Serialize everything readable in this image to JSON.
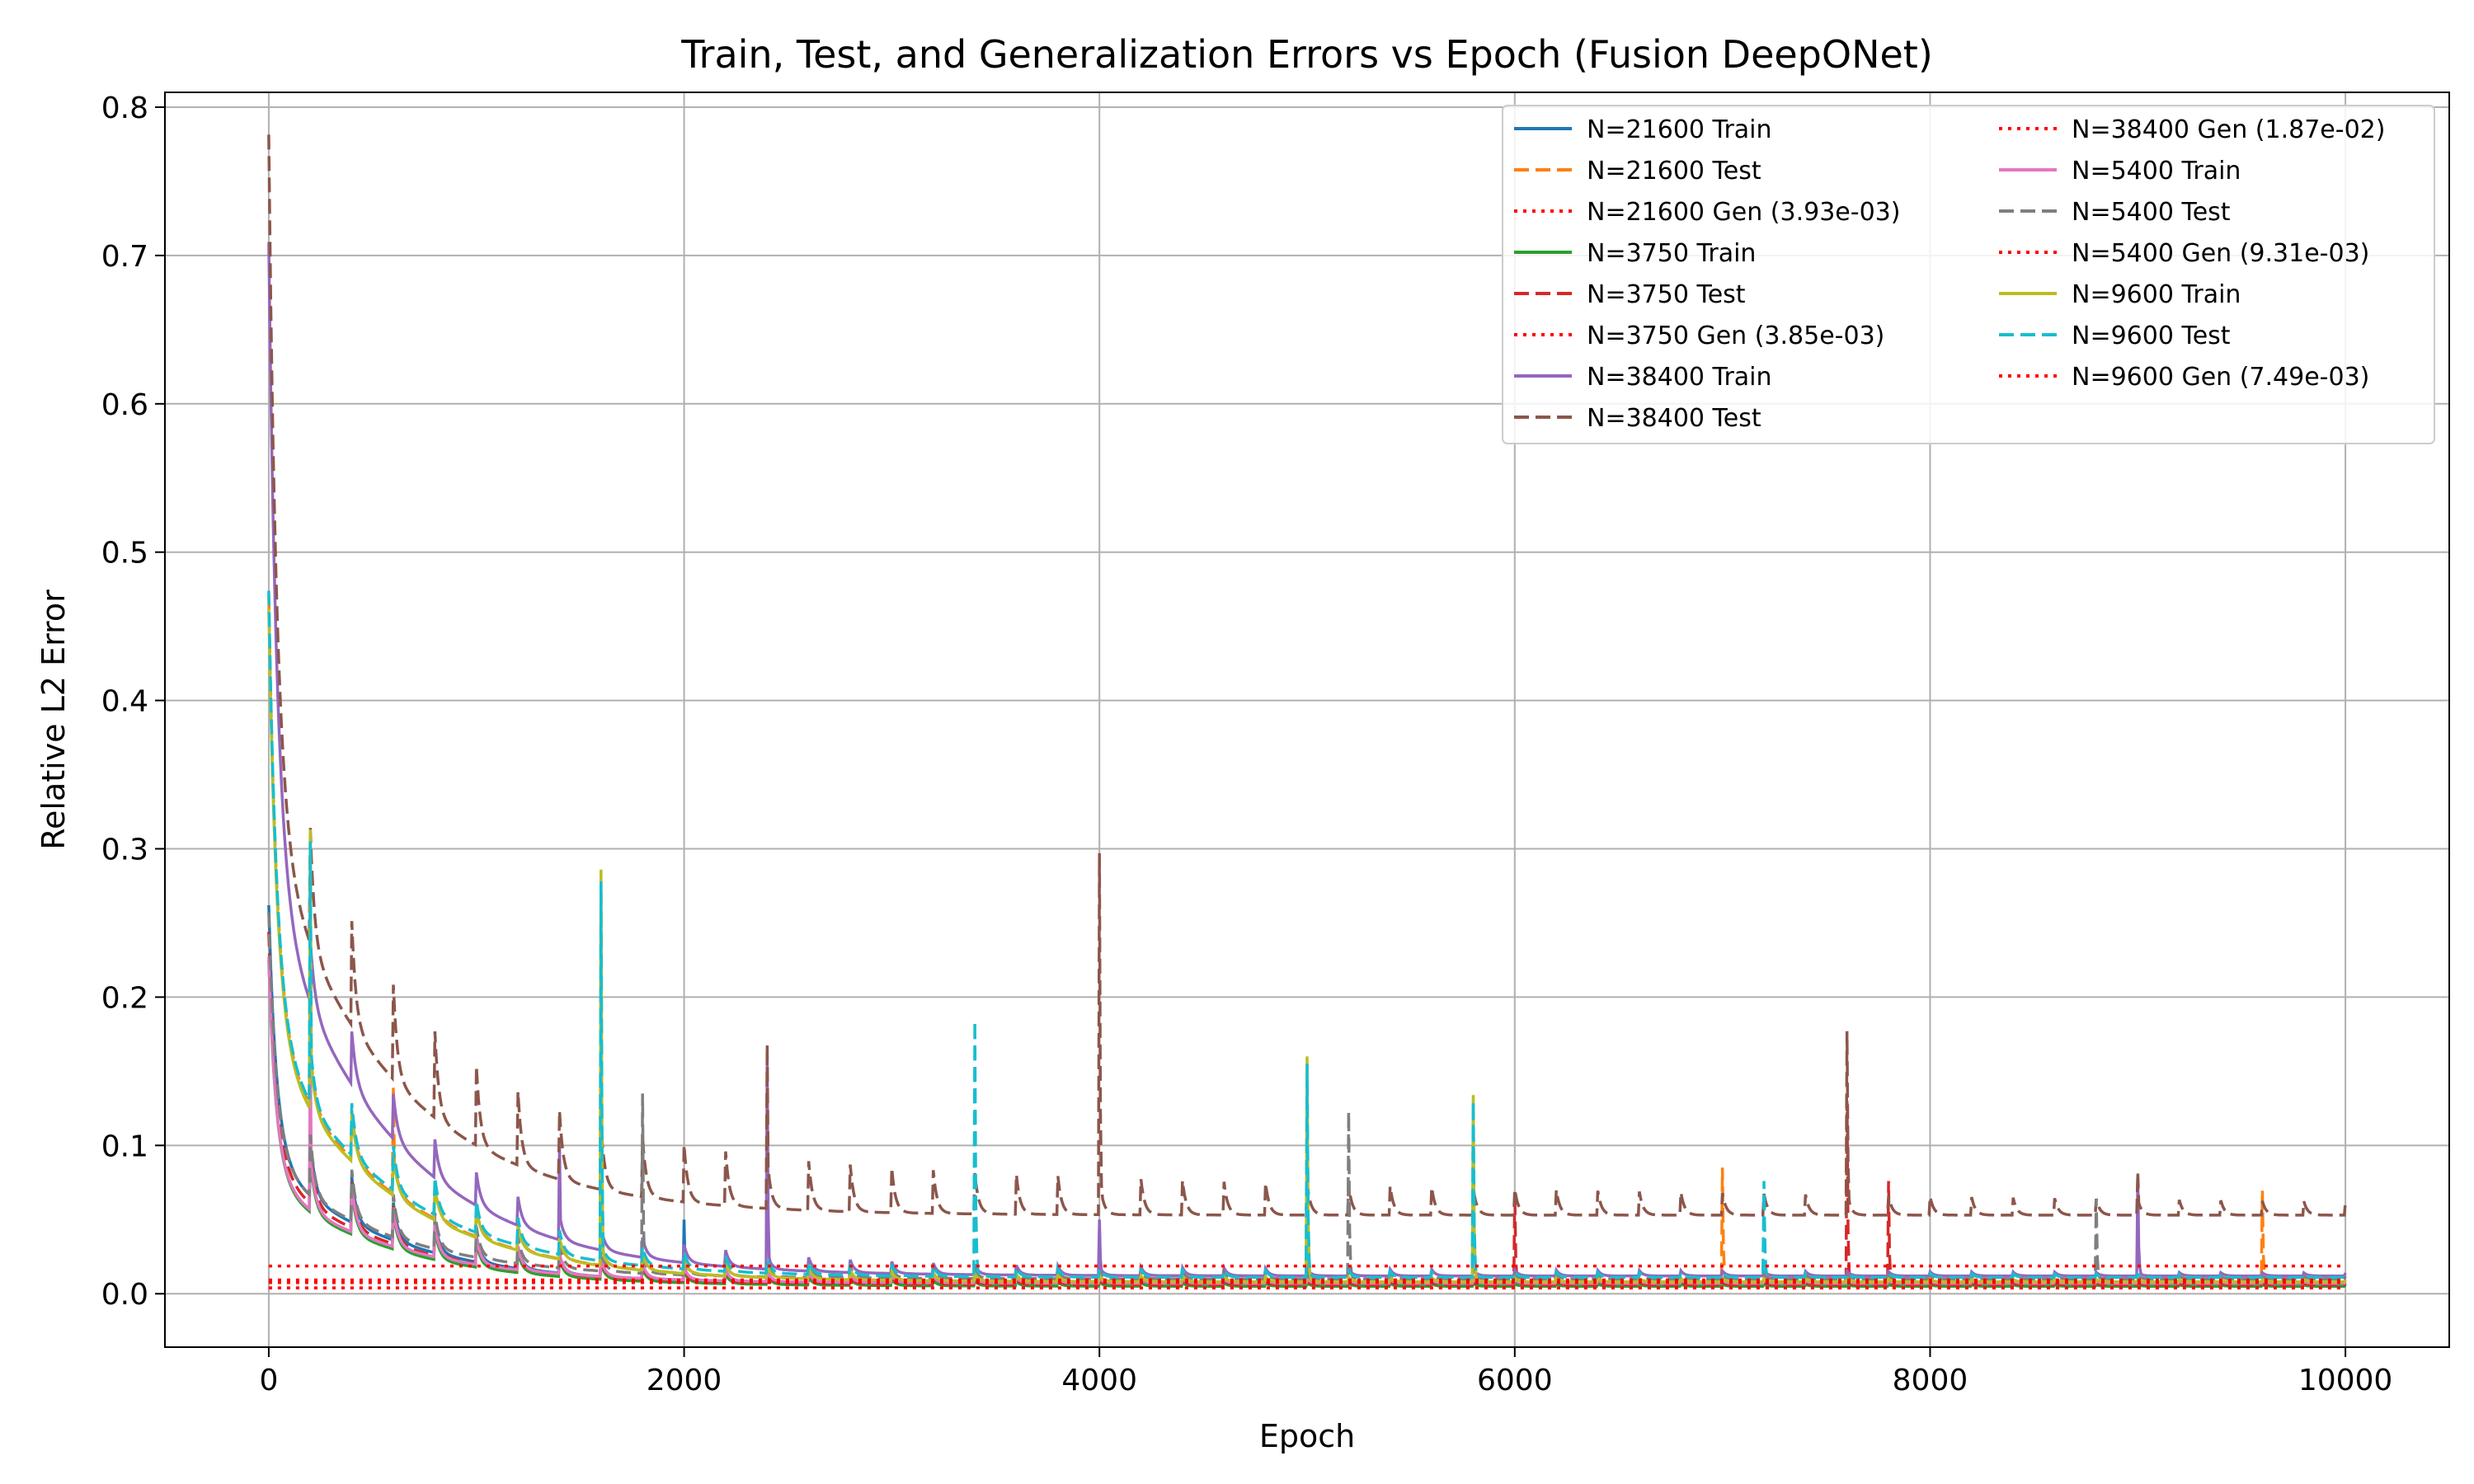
{
  "chart_data": {
    "type": "line",
    "title": "Train, Test, and Generalization Errors vs Epoch (Fusion DeepONet)",
    "xlabel": "Epoch",
    "ylabel": "Relative L2 Error",
    "xlim": [
      -500,
      10500
    ],
    "ylim": [
      -0.036,
      0.81
    ],
    "xticks": [
      0,
      2000,
      4000,
      6000,
      8000,
      10000
    ],
    "xtick_labels": [
      "0",
      "2000",
      "4000",
      "6000",
      "8000",
      "10000"
    ],
    "yticks": [
      0.0,
      0.1,
      0.2,
      0.3,
      0.4,
      0.5,
      0.6,
      0.7,
      0.8
    ],
    "ytick_labels": [
      "0.0",
      "0.1",
      "0.2",
      "0.3",
      "0.4",
      "0.5",
      "0.6",
      "0.7",
      "0.8"
    ],
    "grid": true,
    "legend_position": "top-right",
    "legend_columns": 2,
    "x_range": [
      0,
      10000
    ],
    "series": [
      {
        "name": "N=21600 Train",
        "style": "solid",
        "color": "#1f77b4",
        "start": 0.24,
        "plateau": 0.006,
        "spikes": [
          [
            2000,
            0.05
          ],
          [
            5000,
            0.03
          ]
        ]
      },
      {
        "name": "N=21600 Test",
        "style": "dashed",
        "color": "#ff7f0e",
        "start": 0.47,
        "plateau": 0.008,
        "spikes": [
          [
            200,
            0.31
          ],
          [
            600,
            0.14
          ],
          [
            1600,
            0.28
          ],
          [
            7000,
            0.085
          ],
          [
            9600,
            0.07
          ]
        ]
      },
      {
        "name": "N=21600 Gen (3.93e-03)",
        "style": "dotted",
        "color": "#ff0000",
        "value": 0.00393
      },
      {
        "name": "N=3750 Train",
        "style": "solid",
        "color": "#2ca02c",
        "start": 0.2,
        "plateau": 0.005,
        "spikes": [
          [
            600,
            0.06
          ]
        ]
      },
      {
        "name": "N=3750 Test",
        "style": "dashed",
        "color": "#d62728",
        "start": 0.22,
        "plateau": 0.006,
        "spikes": [
          [
            7600,
            0.13
          ],
          [
            7800,
            0.076
          ],
          [
            6000,
            0.068
          ]
        ]
      },
      {
        "name": "N=3750 Gen (3.85e-03)",
        "style": "dotted",
        "color": "#ff0000",
        "value": 0.00385
      },
      {
        "name": "N=38400 Train",
        "style": "solid",
        "color": "#9467bd",
        "start": 0.73,
        "plateau": 0.012,
        "spikes": [
          [
            1400,
            0.1
          ],
          [
            2400,
            0.16
          ],
          [
            4000,
            0.05
          ],
          [
            9000,
            0.08
          ]
        ]
      },
      {
        "name": "N=38400 Test",
        "style": "dashed",
        "color": "#8c564b",
        "start": 0.765,
        "plateau": 0.053,
        "spikes": [
          [
            2400,
            0.168
          ],
          [
            4000,
            0.297
          ],
          [
            7600,
            0.177
          ],
          [
            9000,
            0.082
          ]
        ]
      },
      {
        "name": "N=38400 Gen (1.87e-02)",
        "style": "dotted",
        "color": "#ff0000",
        "value": 0.0187
      },
      {
        "name": "N=5400 Train",
        "style": "solid",
        "color": "#e377c2",
        "start": 0.2,
        "plateau": 0.007,
        "spikes": [
          [
            200,
            0.17
          ]
        ]
      },
      {
        "name": "N=5400 Test",
        "style": "dashed",
        "color": "#7f7f7f",
        "start": 0.23,
        "plateau": 0.01,
        "spikes": [
          [
            1800,
            0.135
          ],
          [
            5200,
            0.123
          ],
          [
            8800,
            0.064
          ]
        ]
      },
      {
        "name": "N=5400 Gen (9.31e-03)",
        "style": "dotted",
        "color": "#ff0000",
        "value": 0.00931
      },
      {
        "name": "N=9600 Train",
        "style": "solid",
        "color": "#bcbd22",
        "start": 0.46,
        "plateau": 0.008,
        "spikes": [
          [
            200,
            0.313
          ],
          [
            1600,
            0.286
          ],
          [
            5000,
            0.16
          ],
          [
            5800,
            0.134
          ]
        ]
      },
      {
        "name": "N=9600 Test",
        "style": "dashed",
        "color": "#17becf",
        "start": 0.47,
        "plateau": 0.011,
        "spikes": [
          [
            200,
            0.305
          ],
          [
            1600,
            0.278
          ],
          [
            3400,
            0.184
          ],
          [
            5000,
            0.155
          ],
          [
            5800,
            0.13
          ],
          [
            7200,
            0.076
          ]
        ]
      },
      {
        "name": "N=9600 Gen (7.49e-03)",
        "style": "dotted",
        "color": "#ff0000",
        "value": 0.00749
      }
    ]
  }
}
